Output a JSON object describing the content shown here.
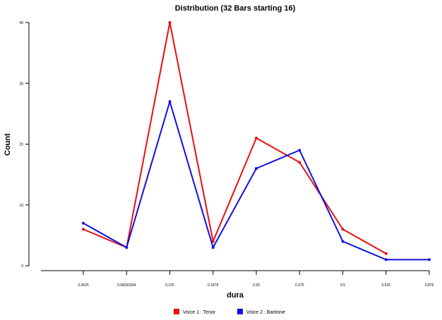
{
  "chart_data": {
    "type": "line",
    "title": "Distribution (32 Bars starting 16)",
    "xlabel": "dura",
    "ylabel": "Count",
    "categories": [
      "0.0625",
      "0.08333334",
      "0.125",
      "0.1875",
      "0.25",
      "0.375",
      "0.5",
      "0.625",
      "0.875"
    ],
    "ylim": [
      0,
      40
    ],
    "y_ticks": [
      "0",
      "10",
      "20",
      "30",
      "40"
    ],
    "grid": false,
    "legend_position": "bottom",
    "series": [
      {
        "name": "Voice 1 : Tenor",
        "color": "#e81010",
        "values": [
          6,
          3,
          40,
          4,
          21,
          17,
          6,
          2,
          null
        ]
      },
      {
        "name": "Voice 2 : Baritone",
        "color": "#1010e0",
        "values": [
          7,
          3,
          27,
          3,
          16,
          19,
          4,
          1,
          1
        ]
      }
    ]
  }
}
